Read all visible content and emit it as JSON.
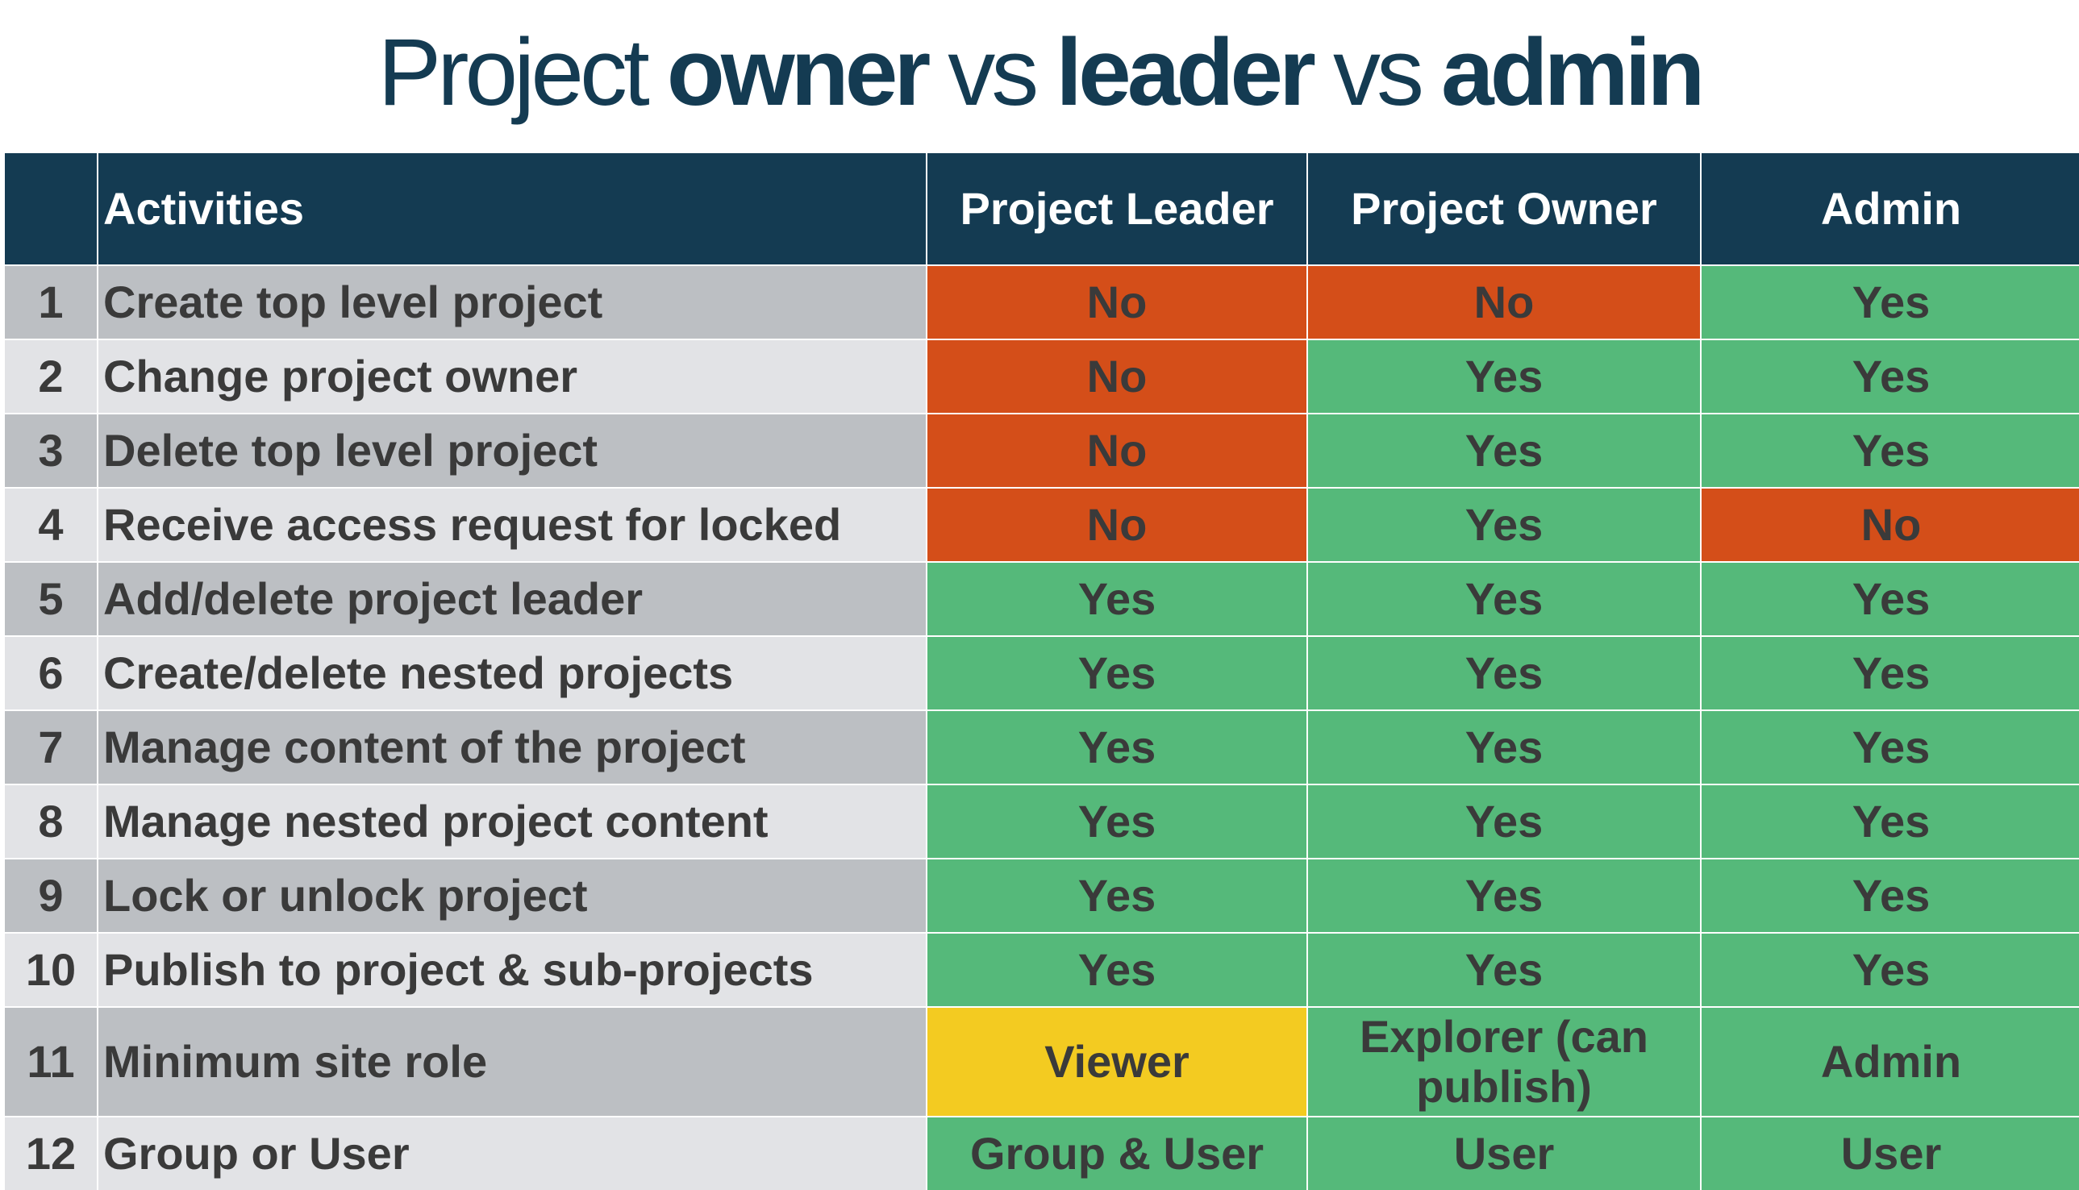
{
  "title": {
    "part1": "Project",
    "part2": "owner",
    "part3": "vs",
    "part4": "leader",
    "part5": "vs",
    "part6": "admin"
  },
  "headers": {
    "number": "",
    "activities": "Activities",
    "leader": "Project Leader",
    "owner": "Project Owner",
    "admin": "Admin"
  },
  "rows": [
    {
      "num": "1",
      "activity": "Create top level project",
      "leader": "No",
      "owner": "No",
      "admin": "Yes"
    },
    {
      "num": "2",
      "activity": "Change project owner",
      "leader": "No",
      "owner": "Yes",
      "admin": "Yes"
    },
    {
      "num": "3",
      "activity": "Delete top level project",
      "leader": "No",
      "owner": "Yes",
      "admin": "Yes"
    },
    {
      "num": "4",
      "activity": "Receive access request for locked",
      "leader": "No",
      "owner": "Yes",
      "admin": "No"
    },
    {
      "num": "5",
      "activity": "Add/delete project leader",
      "leader": "Yes",
      "owner": "Yes",
      "admin": "Yes"
    },
    {
      "num": "6",
      "activity": "Create/delete nested projects",
      "leader": "Yes",
      "owner": "Yes",
      "admin": "Yes"
    },
    {
      "num": "7",
      "activity": "Manage content of the project",
      "leader": "Yes",
      "owner": "Yes",
      "admin": "Yes"
    },
    {
      "num": "8",
      "activity": "Manage nested project content",
      "leader": "Yes",
      "owner": "Yes",
      "admin": "Yes"
    },
    {
      "num": "9",
      "activity": "Lock or unlock project",
      "leader": "Yes",
      "owner": "Yes",
      "admin": "Yes"
    },
    {
      "num": "10",
      "activity": "Publish to project & sub-projects",
      "leader": "Yes",
      "owner": "Yes",
      "admin": "Yes"
    },
    {
      "num": "11",
      "activity": "Minimum site role",
      "leader": "Viewer",
      "owner": "Explorer (can publish)",
      "admin": "Admin"
    },
    {
      "num": "12",
      "activity": "Group or User",
      "leader": "Group & User",
      "owner": "User",
      "admin": "User"
    }
  ],
  "colors": {
    "header": "#143b52",
    "yes": "#55b97a",
    "no": "#d44e19",
    "viewer": "#f3cb21",
    "row_dark": "#bcbfc3",
    "row_light": "#e2e3e6"
  }
}
